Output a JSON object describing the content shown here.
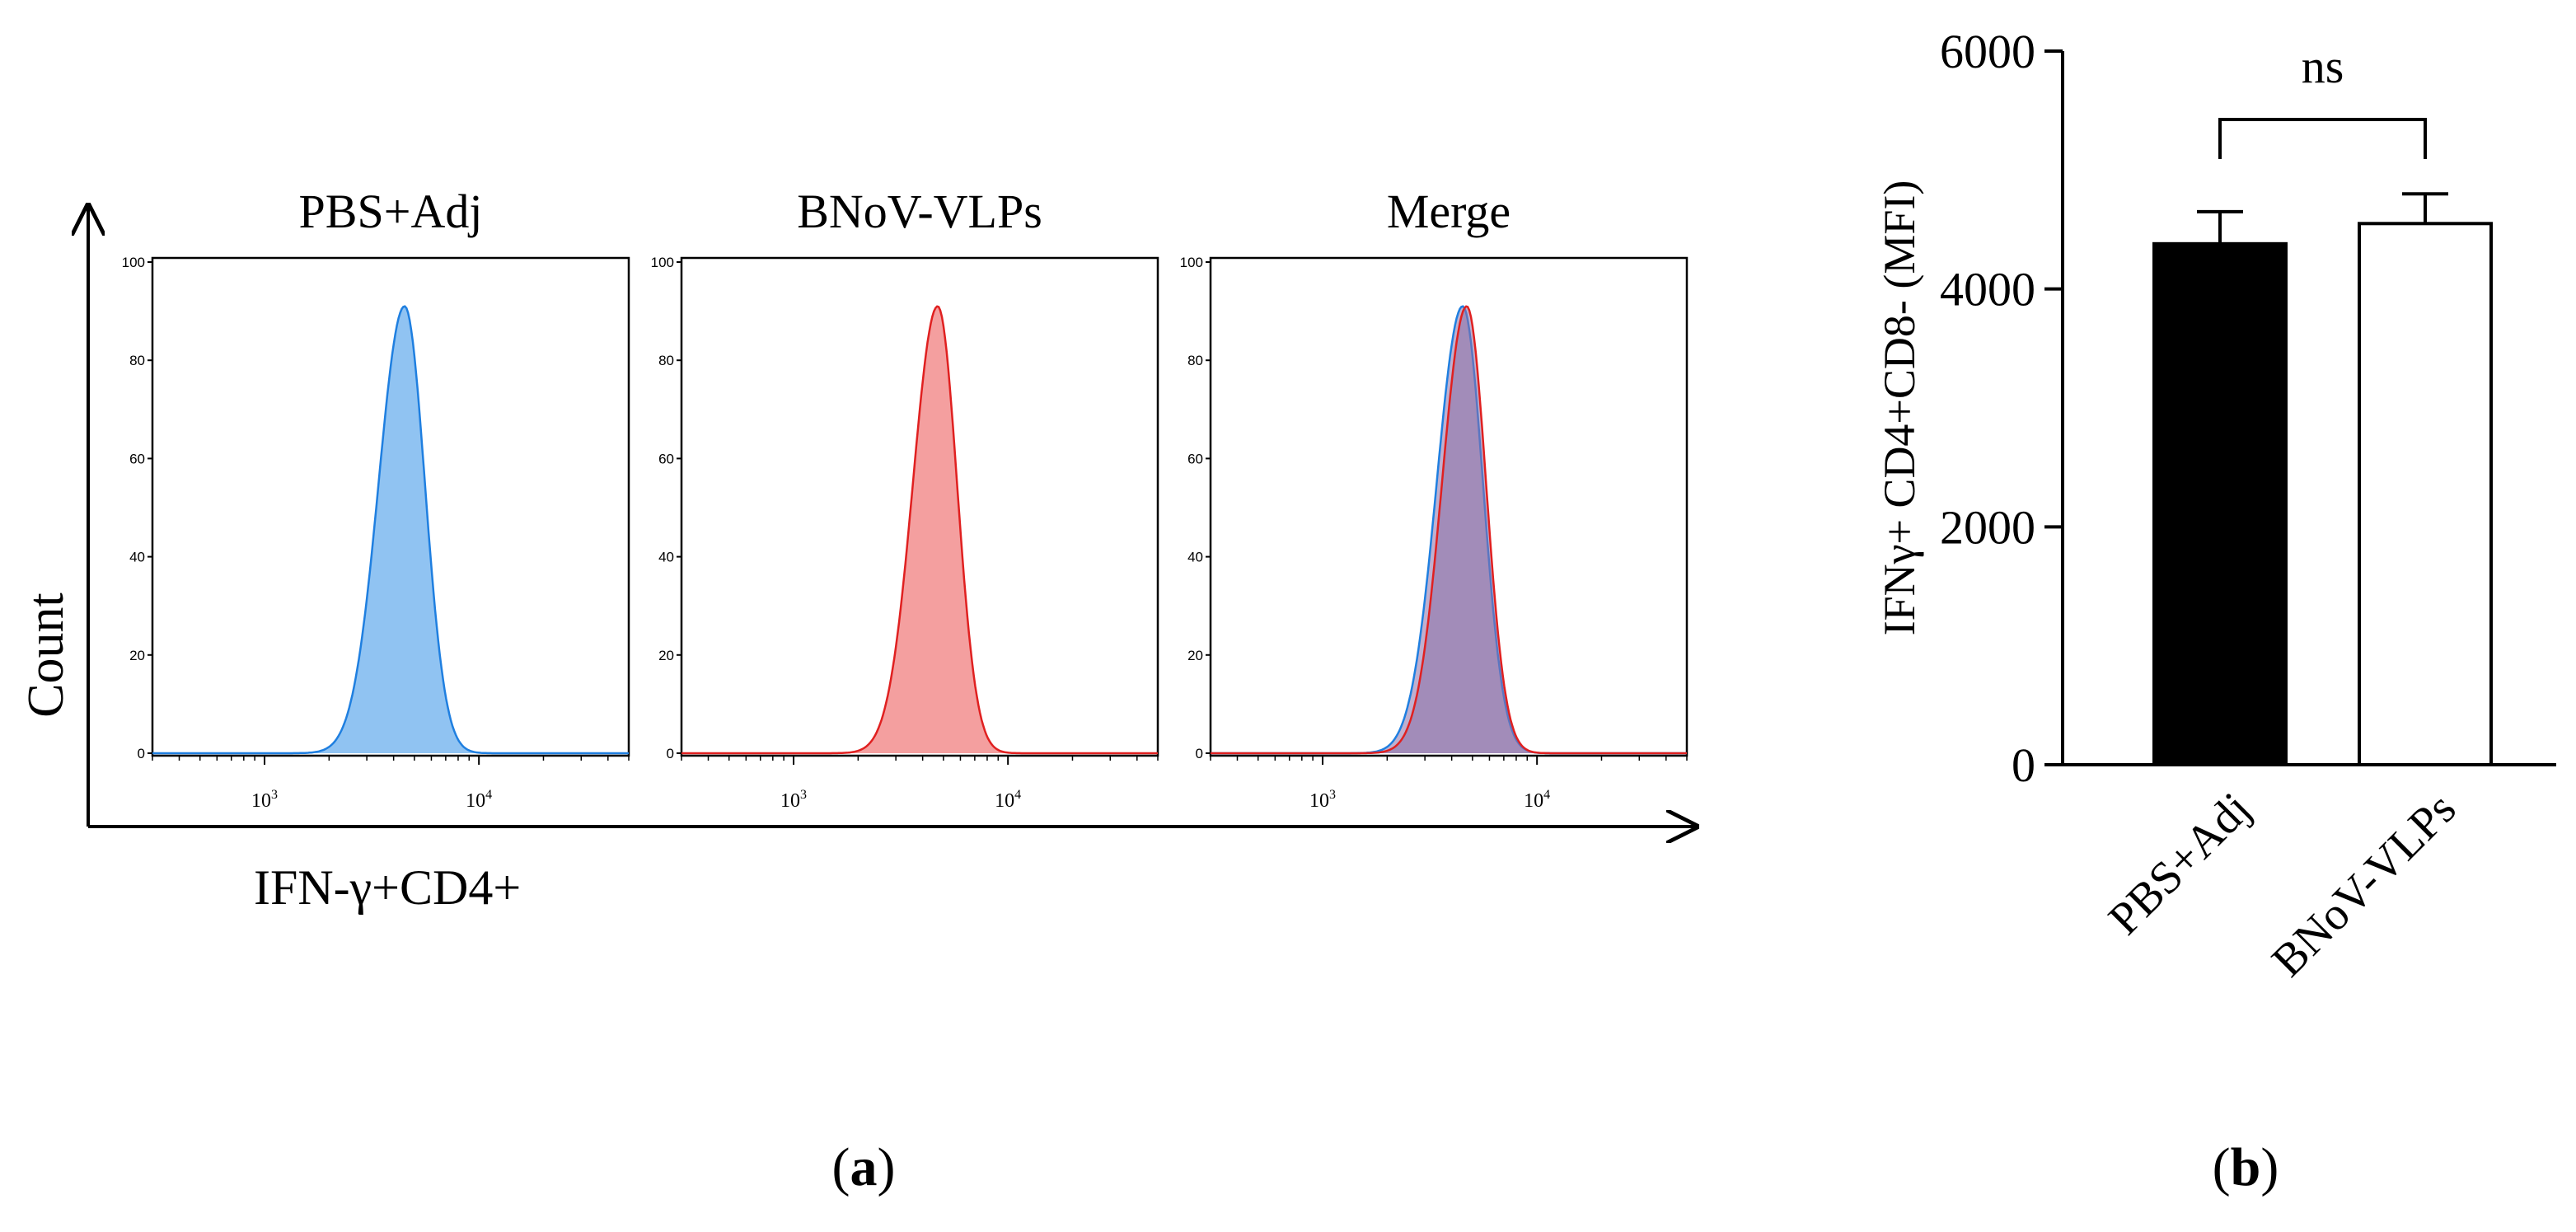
{
  "colors": {
    "pbs_line": "#1f7fe0",
    "pbs_fill": "#7db8f0",
    "vlp_line": "#e02020",
    "vlp_fill": "#f28e8e",
    "merge_fill": "#8a6fa8",
    "axis": "#000000",
    "bar_pbs": "#000000",
    "bar_vlp": "#ffffff"
  },
  "panel_a": {
    "label": "a",
    "y_axis_label": "Count",
    "x_axis_label": "IFN-γ+CD4+"
  },
  "panel_b": {
    "label": "b",
    "significance": "ns"
  },
  "chart_data": [
    {
      "type": "area",
      "title": "PBS+Adj",
      "ylabel": "Count",
      "xlabel": "IFN-γ+CD4+",
      "x_scale": "log",
      "xlim": [
        300,
        50000
      ],
      "ylim": [
        0,
        100
      ],
      "y_ticks": [
        "0",
        "20",
        "40",
        "60",
        "80",
        "100"
      ],
      "x_ticks": [
        {
          "base": "10",
          "exp": "3",
          "value": 1000
        },
        {
          "base": "10",
          "exp": "4",
          "value": 10000
        }
      ],
      "series": [
        {
          "name": "PBS+Adj",
          "color_key": "pbs",
          "peak_x": 4500,
          "peak_y": 91,
          "width": 0.105
        }
      ]
    },
    {
      "type": "area",
      "title": "BNoV-VLPs",
      "x_scale": "log",
      "xlim": [
        300,
        50000
      ],
      "ylim": [
        0,
        100
      ],
      "y_ticks": [
        "0",
        "20",
        "40",
        "60",
        "80",
        "100"
      ],
      "x_ticks": [
        {
          "base": "10",
          "exp": "3",
          "value": 1000
        },
        {
          "base": "10",
          "exp": "4",
          "value": 10000
        }
      ],
      "series": [
        {
          "name": "BNoV-VLPs",
          "color_key": "vlp",
          "peak_x": 4700,
          "peak_y": 91,
          "width": 0.1
        }
      ]
    },
    {
      "type": "area",
      "title": "Merge",
      "x_scale": "log",
      "xlim": [
        300,
        50000
      ],
      "ylim": [
        0,
        100
      ],
      "y_ticks": [
        "0",
        "20",
        "40",
        "60",
        "80",
        "100"
      ],
      "x_ticks": [
        {
          "base": "10",
          "exp": "3",
          "value": 1000
        },
        {
          "base": "10",
          "exp": "4",
          "value": 10000
        }
      ],
      "series": [
        {
          "name": "PBS+Adj",
          "color_key": "pbs",
          "peak_x": 4500,
          "peak_y": 91,
          "width": 0.105
        },
        {
          "name": "BNoV-VLPs",
          "color_key": "vlp",
          "peak_x": 4700,
          "peak_y": 91,
          "width": 0.1
        }
      ]
    },
    {
      "type": "bar",
      "ylabel": "IFNγ+ CD4+CD8- (MFI)",
      "categories": [
        "PBS+Adj",
        "BNoV-VLPs"
      ],
      "values": [
        4380,
        4550
      ],
      "errors": [
        270,
        250
      ],
      "ylim": [
        0,
        6000
      ],
      "y_ticks": [
        "0",
        "2000",
        "4000",
        "6000"
      ],
      "significance": "ns"
    }
  ]
}
